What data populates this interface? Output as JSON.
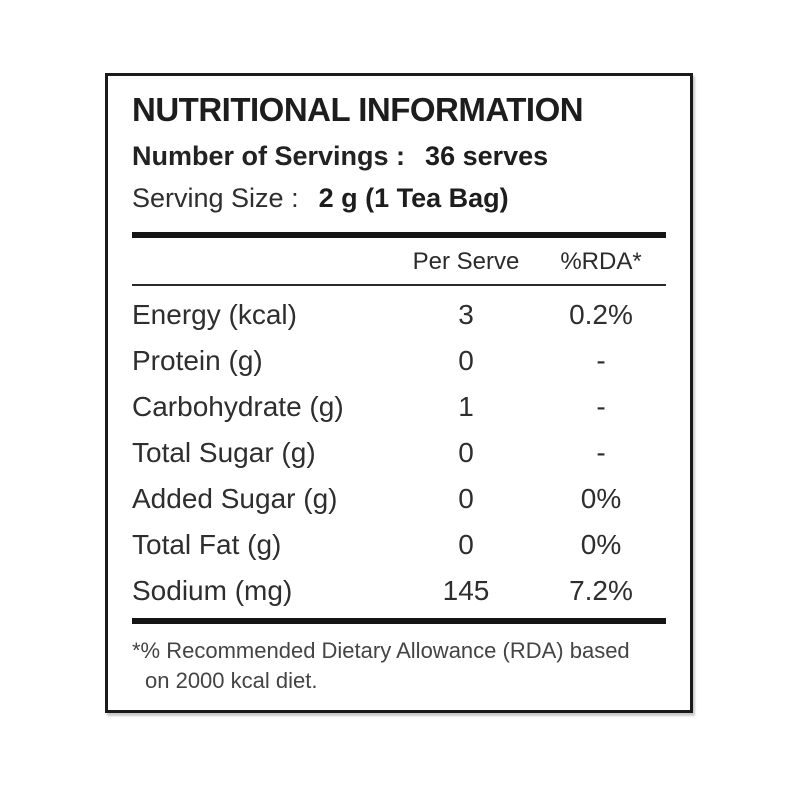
{
  "label": {
    "title": "NUTRITIONAL INFORMATION",
    "servings": {
      "label": "Number of Servings :",
      "value": "36 serves"
    },
    "serving_size": {
      "label": "Serving Size :",
      "value": "2 g (1 Tea Bag)"
    },
    "table": {
      "columns": {
        "per_serve": "Per Serve",
        "rda": "%RDA*"
      },
      "rows": [
        {
          "nutrient": "Energy (kcal)",
          "per_serve": "3",
          "rda": "0.2%"
        },
        {
          "nutrient": "Protein (g)",
          "per_serve": "0",
          "rda": "-"
        },
        {
          "nutrient": "Carbohydrate (g)",
          "per_serve": "1",
          "rda": "-"
        },
        {
          "nutrient": "Total Sugar (g)",
          "per_serve": "0",
          "rda": "-"
        },
        {
          "nutrient": "Added Sugar (g)",
          "per_serve": "0",
          "rda": "0%"
        },
        {
          "nutrient": "Total Fat (g)",
          "per_serve": "0",
          "rda": "0%"
        },
        {
          "nutrient": "Sodium (mg)",
          "per_serve": "145",
          "rda": "7.2%"
        }
      ]
    },
    "footnote": {
      "line1": "*% Recommended Dietary Allowance (RDA) based",
      "line2": "on 2000 kcal diet.",
      "full_text": "*% Recommended Dietary Allowance (RDA) based on 2000 kcal diet."
    },
    "colors": {
      "text": "#262626",
      "rule": "#151515",
      "border": "#1a1a1a",
      "background": "#ffffff"
    }
  }
}
